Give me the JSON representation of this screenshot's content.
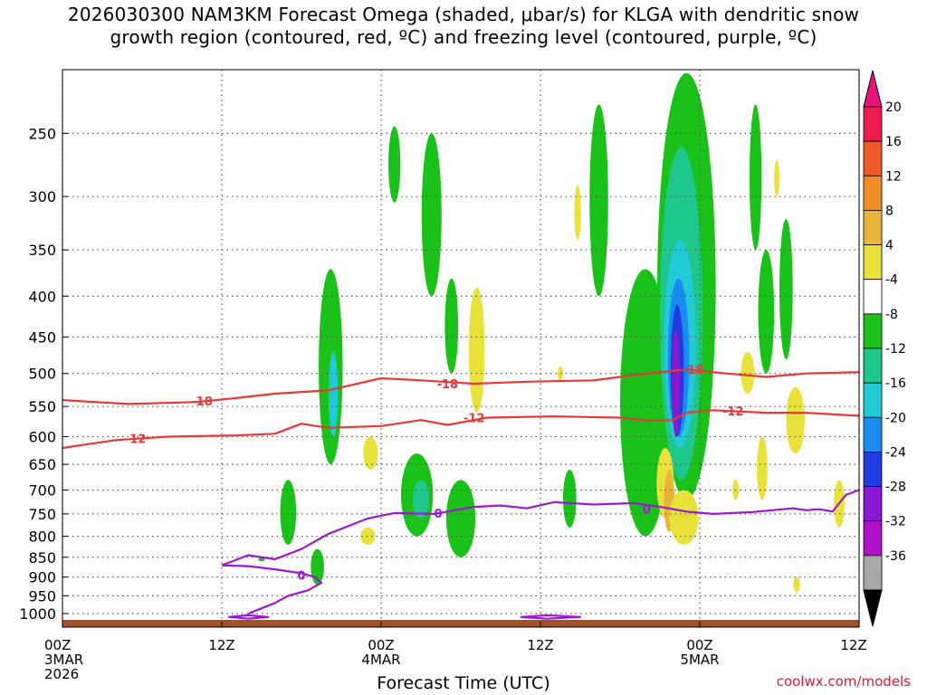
{
  "title_line_1": "2026030300 NAM3KM Forecast Omega (shaded, μbar/s) for KLGA with dendritic snow",
  "title_line_2": "growth region (contoured, red, ºC) and freezing level (contoured, purple, ºC)",
  "credit": "coolwx.com/models",
  "chart_data": {
    "type": "heatmap",
    "xlabel": "Forecast Time (UTC)",
    "ylabel": "",
    "y_scale": "pressure (inverted, log-like)",
    "ylim": [
      1000,
      200
    ],
    "grid": true,
    "x_ticks": [
      {
        "hour": 0,
        "lines": [
          "00Z",
          "3MAR",
          "2026"
        ]
      },
      {
        "hour": 12,
        "lines": [
          "12Z"
        ]
      },
      {
        "hour": 24,
        "lines": [
          "00Z",
          "4MAR"
        ]
      },
      {
        "hour": 36,
        "lines": [
          "12Z"
        ]
      },
      {
        "hour": 48,
        "lines": [
          "00Z",
          "5MAR"
        ]
      },
      {
        "hour": 60,
        "lines": [
          "12Z"
        ]
      }
    ],
    "xlim": [
      0,
      60
    ],
    "y_ticks": [
      250,
      300,
      350,
      400,
      450,
      500,
      550,
      600,
      650,
      700,
      750,
      800,
      850,
      900,
      950,
      1000
    ],
    "colorbar": {
      "labels": [
        "20",
        "16",
        "12",
        "8",
        "4",
        "-4",
        "-8",
        "-12",
        "-16",
        "-20",
        "-24",
        "-28",
        "-32",
        "-36"
      ],
      "colors": [
        "#ec1c4c",
        "#f05a28",
        "#ef8c28",
        "#e8b43a",
        "#e8e23a",
        "#ffffff",
        "#19c119",
        "#1ec88c",
        "#22c9d6",
        "#1a8cf0",
        "#1f3ce0",
        "#8a18d0",
        "#b010c8",
        "#a8a8a8"
      ],
      "top_color": "#e8147a",
      "bottom_color": "#000000"
    },
    "contours": [
      {
        "label": "-18",
        "color": "#e83838",
        "points": [
          [
            0,
            540
          ],
          [
            5,
            546
          ],
          [
            10,
            543
          ],
          [
            13,
            537
          ],
          [
            16,
            530
          ],
          [
            20,
            525
          ],
          [
            24,
            507
          ],
          [
            27,
            510
          ],
          [
            31,
            515
          ],
          [
            35,
            512
          ],
          [
            40,
            510
          ],
          [
            42,
            505
          ],
          [
            45,
            498
          ],
          [
            47,
            494
          ],
          [
            50,
            500
          ],
          [
            53,
            505
          ],
          [
            56,
            500
          ],
          [
            60,
            498
          ]
        ],
        "label_at": [
          [
            10.5,
            541
          ],
          [
            29,
            515
          ],
          [
            47.5,
            494
          ]
        ]
      },
      {
        "label": "-12",
        "color": "#e83838",
        "points": [
          [
            0,
            620
          ],
          [
            4,
            606
          ],
          [
            8,
            600
          ],
          [
            13,
            598
          ],
          [
            16,
            595
          ],
          [
            18,
            578
          ],
          [
            20,
            585
          ],
          [
            24,
            582
          ],
          [
            27,
            572
          ],
          [
            29,
            580
          ],
          [
            32,
            568
          ],
          [
            37,
            566
          ],
          [
            42,
            568
          ],
          [
            44,
            573
          ],
          [
            46,
            572
          ],
          [
            47,
            560
          ],
          [
            49,
            556
          ],
          [
            53,
            560
          ],
          [
            56,
            560
          ],
          [
            60,
            565
          ]
        ],
        "label_at": [
          [
            5.5,
            603
          ],
          [
            31,
            568
          ],
          [
            50.5,
            557
          ]
        ]
      },
      {
        "label": "0",
        "color": "#9a1ad4",
        "points": [
          [
            12,
            870
          ],
          [
            14,
            845
          ],
          [
            16,
            855
          ],
          [
            18,
            830
          ],
          [
            20,
            795
          ],
          [
            23,
            760
          ],
          [
            25,
            748
          ],
          [
            28,
            750
          ],
          [
            31,
            735
          ],
          [
            33,
            732
          ],
          [
            35,
            738
          ],
          [
            37,
            725
          ],
          [
            40,
            730
          ],
          [
            43,
            727
          ],
          [
            45,
            735
          ],
          [
            47,
            745
          ],
          [
            49,
            750
          ],
          [
            52,
            746
          ],
          [
            55,
            738
          ],
          [
            56,
            742
          ],
          [
            57,
            740
          ],
          [
            58,
            745
          ],
          [
            59,
            710
          ],
          [
            60,
            700
          ]
        ],
        "label_at": [
          [
            28.3,
            748
          ],
          [
            44,
            740
          ]
        ]
      },
      {
        "label": "0",
        "color": "#9a1ad4",
        "points": [
          [
            12,
            870
          ],
          [
            14,
            872
          ],
          [
            16,
            880
          ],
          [
            18,
            890
          ],
          [
            19,
            900
          ],
          [
            19.5,
            915
          ],
          [
            18.5,
            935
          ],
          [
            17,
            950
          ],
          [
            16,
            970
          ],
          [
            15,
            985
          ],
          [
            14,
            1000
          ]
        ],
        "label_at": [
          [
            18,
            895
          ]
        ]
      },
      {
        "label": "",
        "color": "#9a1ad4",
        "points": [
          [
            12.5,
            1010
          ],
          [
            14,
            1005
          ],
          [
            15.5,
            1010
          ],
          [
            14,
            1015
          ],
          [
            12.5,
            1010
          ]
        ]
      },
      {
        "label": "",
        "color": "#9a1ad4",
        "points": [
          [
            34.5,
            1010
          ],
          [
            36.5,
            1005
          ],
          [
            39,
            1010
          ],
          [
            36.5,
            1015
          ],
          [
            34.5,
            1010
          ]
        ]
      }
    ]
  },
  "omega_blobs": [
    {
      "color": "#19c119",
      "x": 20.2,
      "p_top": 370,
      "p_bot": 650,
      "w": 1.8
    },
    {
      "color": "#22c9d6",
      "x": 20.4,
      "p_top": 470,
      "p_bot": 600,
      "w": 0.7
    },
    {
      "color": "#19c119",
      "x": 17.0,
      "p_top": 680,
      "p_bot": 820,
      "w": 1.2
    },
    {
      "color": "#19c119",
      "x": 19.2,
      "p_top": 830,
      "p_bot": 920,
      "w": 1.0
    },
    {
      "color": "#19c119",
      "x": 15.0,
      "p_top": 850,
      "p_bot": 860,
      "w": 0.5
    },
    {
      "color": "#19c119",
      "x": 27.8,
      "p_top": 250,
      "p_bot": 400,
      "w": 1.5
    },
    {
      "color": "#19c119",
      "x": 29.3,
      "p_top": 380,
      "p_bot": 500,
      "w": 1.0
    },
    {
      "color": "#19c119",
      "x": 25.0,
      "p_top": 245,
      "p_bot": 305,
      "w": 0.9
    },
    {
      "color": "#19c119",
      "x": 26.7,
      "p_top": 630,
      "p_bot": 800,
      "w": 2.4
    },
    {
      "color": "#1ec88c",
      "x": 27.0,
      "p_top": 680,
      "p_bot": 760,
      "w": 1.2
    },
    {
      "color": "#19c119",
      "x": 30.0,
      "p_top": 680,
      "p_bot": 850,
      "w": 2.2
    },
    {
      "color": "#e8e23a",
      "x": 31.2,
      "p_top": 390,
      "p_bot": 560,
      "w": 1.2
    },
    {
      "color": "#e8e23a",
      "x": 23.2,
      "p_top": 600,
      "p_bot": 660,
      "w": 1.1
    },
    {
      "color": "#e8e23a",
      "x": 23.0,
      "p_top": 780,
      "p_bot": 820,
      "w": 1.1
    },
    {
      "color": "#e8e23a",
      "x": 37.5,
      "p_top": 490,
      "p_bot": 510,
      "w": 0.4
    },
    {
      "color": "#e8e23a",
      "x": 38.8,
      "p_top": 290,
      "p_bot": 340,
      "w": 0.5
    },
    {
      "color": "#19c119",
      "x": 40.4,
      "p_top": 230,
      "p_bot": 400,
      "w": 1.4
    },
    {
      "color": "#19c119",
      "x": 38.2,
      "p_top": 660,
      "p_bot": 780,
      "w": 1.0
    },
    {
      "color": "#19c119",
      "x": 43.9,
      "p_top": 370,
      "p_bot": 800,
      "w": 3.8
    },
    {
      "color": "#19c119",
      "x": 47.0,
      "p_top": 210,
      "p_bot": 720,
      "w": 4.4
    },
    {
      "color": "#1ec88c",
      "x": 46.6,
      "p_top": 260,
      "p_bot": 680,
      "w": 3.2
    },
    {
      "color": "#22c9d6",
      "x": 46.5,
      "p_top": 340,
      "p_bot": 620,
      "w": 2.4
    },
    {
      "color": "#1a8cf0",
      "x": 46.4,
      "p_top": 380,
      "p_bot": 600,
      "w": 1.6
    },
    {
      "color": "#1f3ce0",
      "x": 46.3,
      "p_top": 410,
      "p_bot": 600,
      "w": 1.0
    },
    {
      "color": "#8a18d0",
      "x": 46.2,
      "p_top": 440,
      "p_bot": 600,
      "w": 0.6
    },
    {
      "color": "#e8e23a",
      "x": 45.4,
      "p_top": 620,
      "p_bot": 760,
      "w": 1.3
    },
    {
      "color": "#e8b43a",
      "x": 45.7,
      "p_top": 660,
      "p_bot": 790,
      "w": 0.8
    },
    {
      "color": "#e8e23a",
      "x": 46.8,
      "p_top": 700,
      "p_bot": 820,
      "w": 2.2
    },
    {
      "color": "#19c119",
      "x": 52.2,
      "p_top": 230,
      "p_bot": 350,
      "w": 0.9
    },
    {
      "color": "#19c119",
      "x": 53.0,
      "p_top": 350,
      "p_bot": 500,
      "w": 1.2
    },
    {
      "color": "#19c119",
      "x": 54.5,
      "p_top": 320,
      "p_bot": 480,
      "w": 1.0
    },
    {
      "color": "#e8e23a",
      "x": 53.8,
      "p_top": 270,
      "p_bot": 300,
      "w": 0.3
    },
    {
      "color": "#e8e23a",
      "x": 51.6,
      "p_top": 470,
      "p_bot": 530,
      "w": 1.0
    },
    {
      "color": "#e8e23a",
      "x": 55.2,
      "p_top": 520,
      "p_bot": 630,
      "w": 1.4
    },
    {
      "color": "#e8e23a",
      "x": 52.7,
      "p_top": 600,
      "p_bot": 720,
      "w": 0.8
    },
    {
      "color": "#e8e23a",
      "x": 50.7,
      "p_top": 680,
      "p_bot": 720,
      "w": 0.5
    },
    {
      "color": "#e8e23a",
      "x": 55.3,
      "p_top": 900,
      "p_bot": 940,
      "w": 0.5
    },
    {
      "color": "#e8e23a",
      "x": 58.5,
      "p_top": 680,
      "p_bot": 780,
      "w": 0.8
    }
  ]
}
